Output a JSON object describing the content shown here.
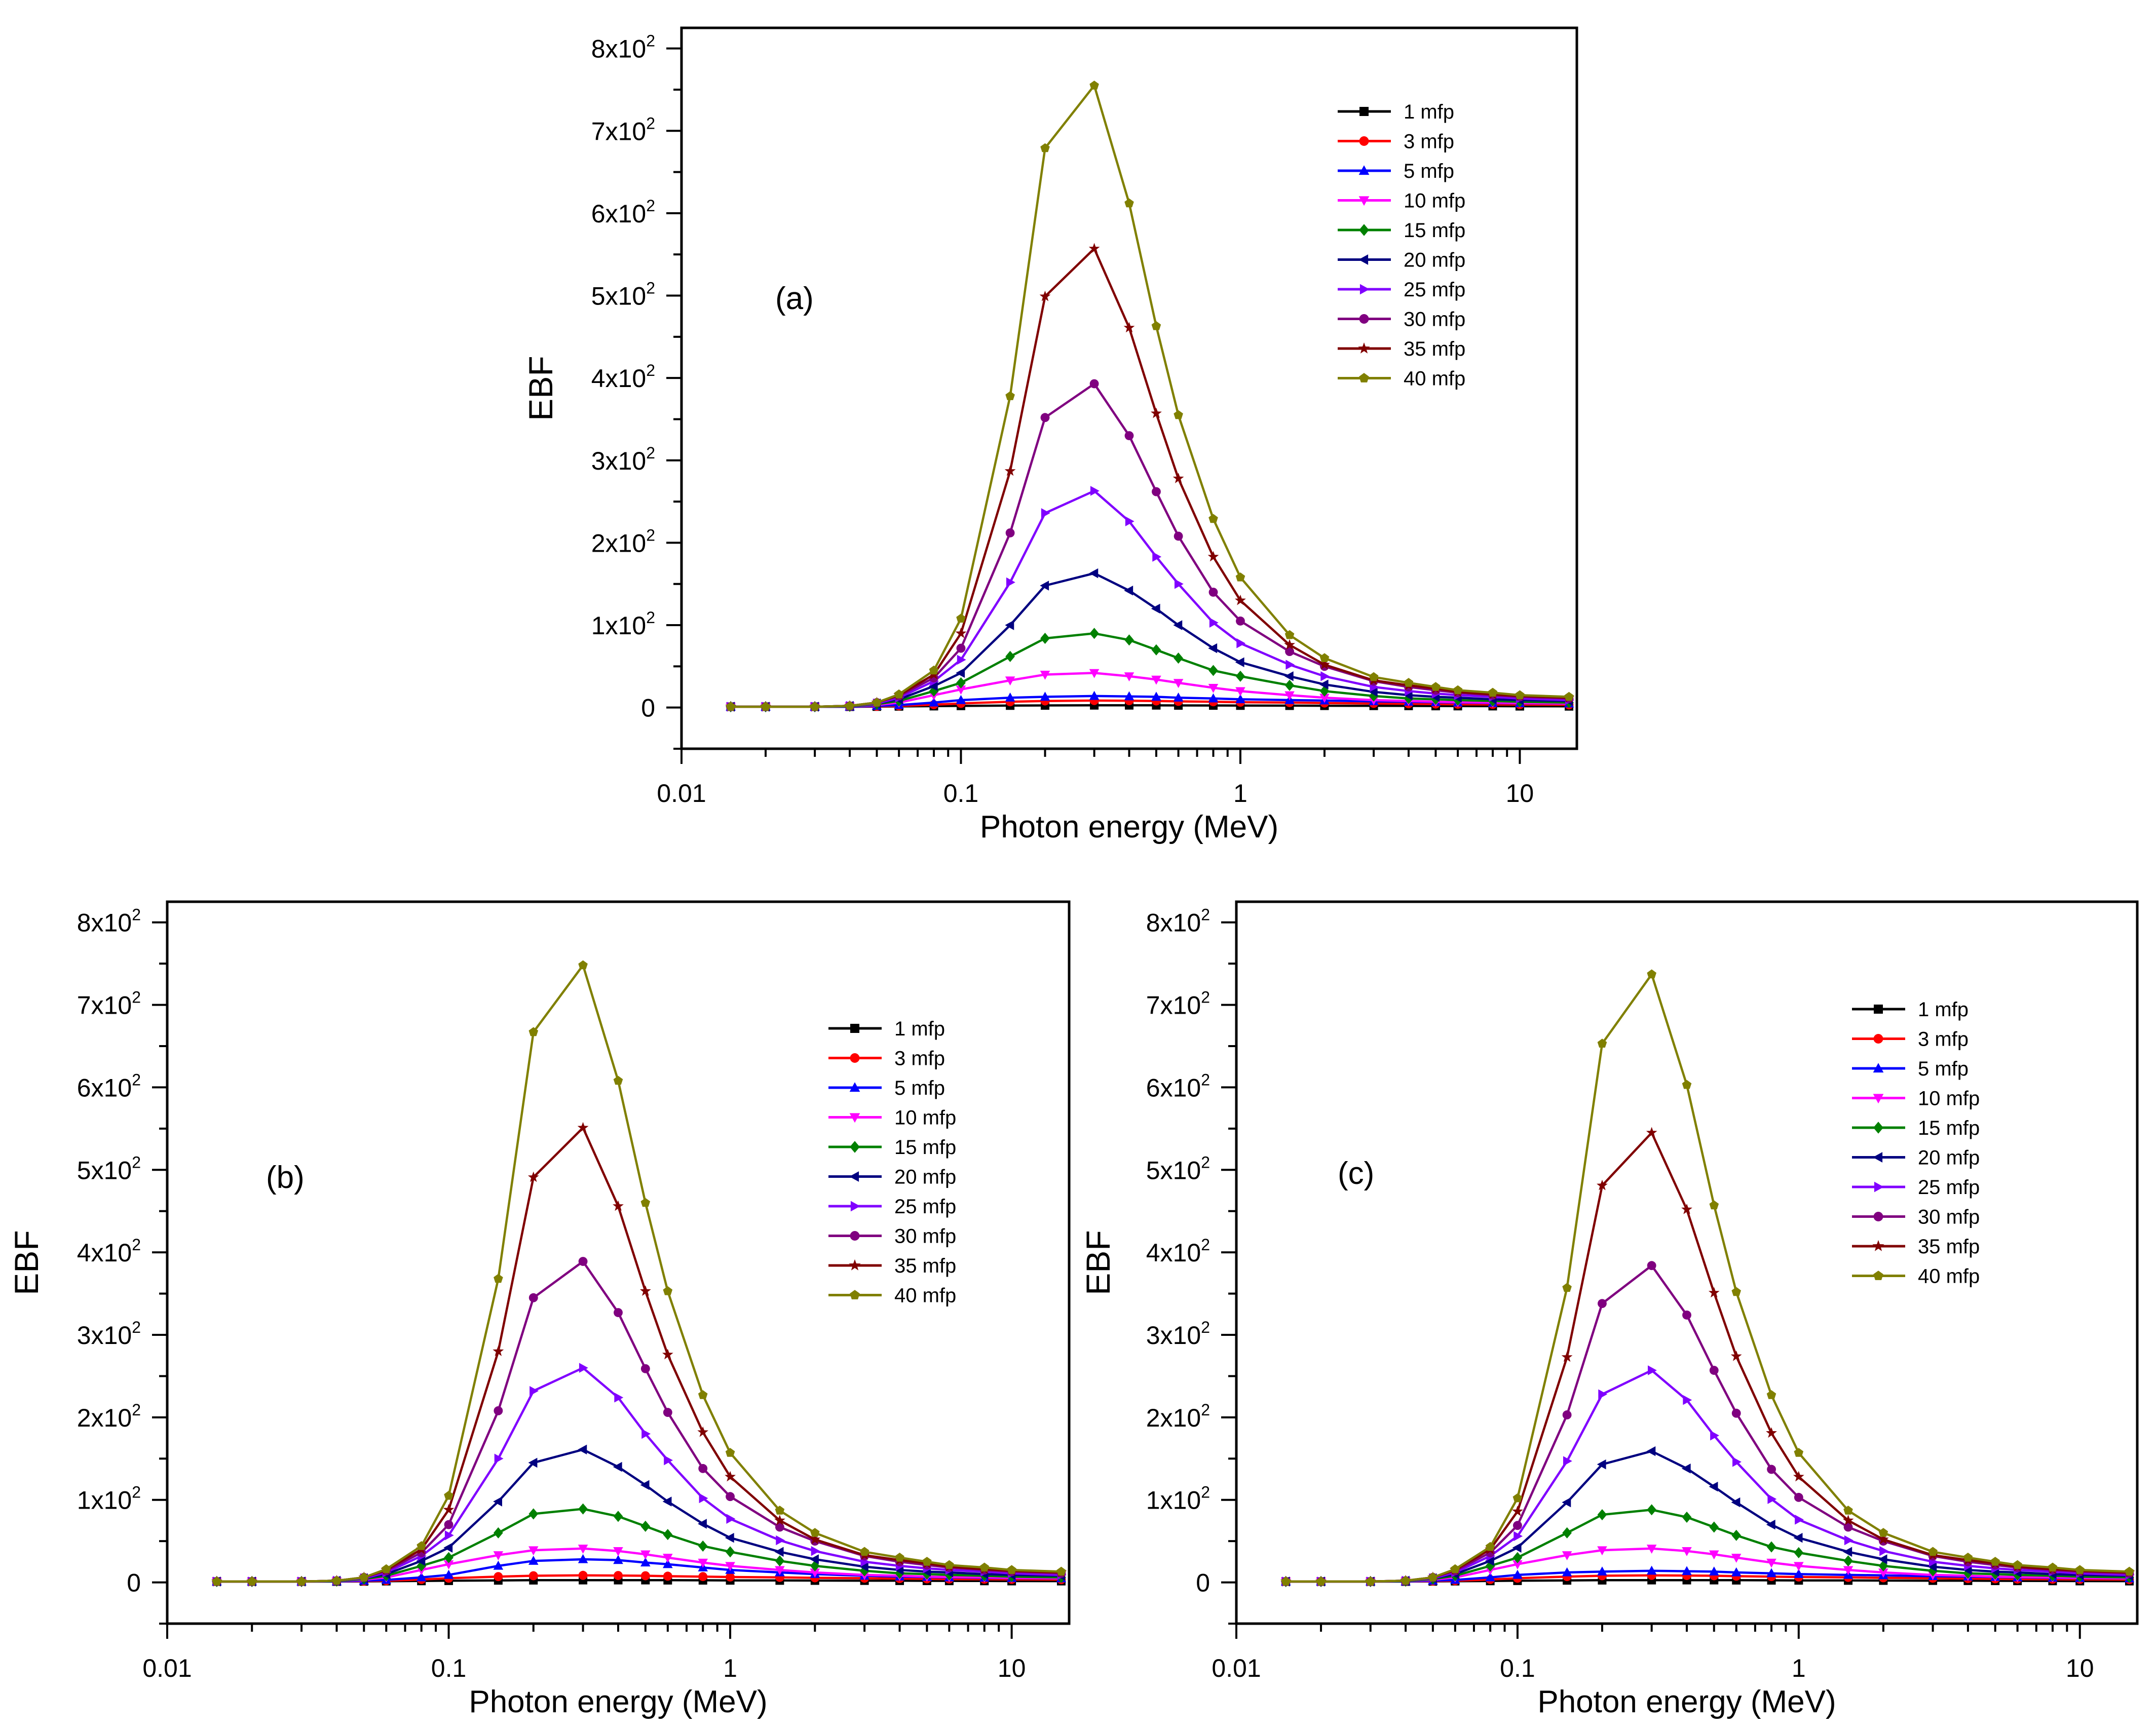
{
  "figure": {
    "axis_labels": {
      "x": "Photon energy (MeV)",
      "y": "EBF"
    },
    "x_ticks": [
      "0.01",
      "0.1",
      "1",
      "10"
    ],
    "y_ticks": [
      {
        "base": "0",
        "exp": ""
      },
      {
        "base": "1x10",
        "exp": "2"
      },
      {
        "base": "2x10",
        "exp": "2"
      },
      {
        "base": "3x10",
        "exp": "2"
      },
      {
        "base": "4x10",
        "exp": "2"
      },
      {
        "base": "5x10",
        "exp": "2"
      },
      {
        "base": "6x10",
        "exp": "2"
      },
      {
        "base": "7x10",
        "exp": "2"
      },
      {
        "base": "8x10",
        "exp": "2"
      }
    ]
  },
  "chart_data": [
    {
      "type": "line",
      "panel_label": "(a)",
      "xlabel": "Photon energy (MeV)",
      "ylabel": "EBF",
      "xscale": "log",
      "xlim": [
        0.01,
        16
      ],
      "ylim": [
        -50,
        825
      ],
      "legend_position": "top-right",
      "x": [
        0.015,
        0.02,
        0.03,
        0.04,
        0.05,
        0.06,
        0.08,
        0.1,
        0.15,
        0.2,
        0.3,
        0.4,
        0.5,
        0.6,
        0.8,
        1,
        1.5,
        2,
        3,
        4,
        5,
        6,
        8,
        10,
        15
      ],
      "series": [
        {
          "name": "1 mfp",
          "color": "#000000",
          "marker": "square",
          "values": [
            1,
            1,
            1,
            1,
            1.2,
            1.4,
            1.7,
            2,
            2.4,
            2.6,
            2.7,
            2.7,
            2.7,
            2.6,
            2.5,
            2.4,
            2.3,
            2.2,
            2.1,
            2,
            1.9,
            1.8,
            1.7,
            1.6,
            1.5
          ]
        },
        {
          "name": "3 mfp",
          "color": "#ff0000",
          "marker": "circle",
          "values": [
            1,
            1,
            1,
            1,
            1.5,
            2,
            3.5,
            5,
            7,
            8,
            8.5,
            8.3,
            8,
            7.5,
            7,
            6.5,
            6,
            5.5,
            5,
            4.6,
            4.3,
            4,
            3.8,
            3.6,
            3.3
          ]
        },
        {
          "name": "5 mfp",
          "color": "#0000ff",
          "marker": "triangle-up",
          "values": [
            1,
            1,
            1,
            1,
            2,
            3,
            6,
            9,
            12,
            13,
            14,
            13.5,
            13,
            12,
            11,
            10,
            9,
            8.5,
            7.5,
            7,
            6.5,
            6,
            5.5,
            5.2,
            4.8
          ]
        },
        {
          "name": "10 mfp",
          "color": "#ff00ff",
          "marker": "triangle-down",
          "values": [
            1,
            1,
            1,
            1.5,
            3,
            6,
            15,
            22,
            33,
            40,
            42,
            38,
            34,
            30,
            24,
            20,
            15,
            12,
            9,
            8,
            7,
            6.5,
            6,
            5.5,
            5
          ]
        },
        {
          "name": "15 mfp",
          "color": "#008000",
          "marker": "diamond",
          "values": [
            1,
            1,
            1,
            1.5,
            4,
            8,
            20,
            30,
            62,
            84,
            90,
            82,
            70,
            60,
            45,
            38,
            27,
            20,
            14,
            11,
            10,
            9,
            8,
            7,
            6
          ]
        },
        {
          "name": "20 mfp",
          "color": "#000080",
          "marker": "triangle-left",
          "values": [
            1,
            1,
            1,
            2,
            5,
            10,
            26,
            42,
            100,
            148,
            163,
            142,
            120,
            100,
            72,
            55,
            38,
            28,
            19,
            15,
            13,
            12,
            10,
            9,
            8
          ]
        },
        {
          "name": "25 mfp",
          "color": "#8000ff",
          "marker": "triangle-right",
          "values": [
            1,
            1,
            1,
            2,
            5,
            12,
            32,
            58,
            152,
            236,
            263,
            226,
            183,
            150,
            103,
            78,
            52,
            38,
            25,
            20,
            17,
            15,
            13,
            11,
            9
          ]
        },
        {
          "name": "30 mfp",
          "color": "#800080",
          "marker": "circle",
          "values": [
            1,
            1,
            1,
            2,
            6,
            14,
            36,
            72,
            212,
            352,
            393,
            330,
            262,
            208,
            140,
            105,
            68,
            50,
            32,
            25,
            21,
            18,
            15,
            13,
            11
          ]
        },
        {
          "name": "35 mfp",
          "color": "#800000",
          "marker": "star",
          "values": [
            1,
            1,
            1,
            2,
            6,
            15,
            40,
            90,
            287,
            499,
            557,
            461,
            357,
            278,
            183,
            130,
            76,
            52,
            33,
            27,
            23,
            19,
            16,
            14,
            12
          ]
        },
        {
          "name": "40 mfp",
          "color": "#808000",
          "marker": "pentagon",
          "values": [
            1,
            1,
            1,
            2,
            6,
            16,
            45,
            108,
            378,
            679,
            755,
            612,
            463,
            355,
            229,
            158,
            88,
            60,
            37,
            30,
            25,
            21,
            18,
            15,
            13
          ]
        }
      ]
    },
    {
      "type": "line",
      "panel_label": "(b)",
      "xlabel": "Photon energy (MeV)",
      "ylabel": "EBF",
      "xscale": "log",
      "xlim": [
        0.01,
        16
      ],
      "ylim": [
        -50,
        825
      ],
      "legend_position": "top-right",
      "x": [
        0.015,
        0.02,
        0.03,
        0.04,
        0.05,
        0.06,
        0.08,
        0.1,
        0.15,
        0.2,
        0.3,
        0.4,
        0.5,
        0.6,
        0.8,
        1,
        1.5,
        2,
        3,
        4,
        5,
        6,
        8,
        10,
        15
      ],
      "series": [
        {
          "name": "1 mfp",
          "color": "#000000",
          "marker": "square",
          "values": [
            1,
            1,
            1,
            1,
            1.2,
            1.4,
            1.7,
            2,
            2.4,
            2.6,
            2.7,
            2.7,
            2.7,
            2.6,
            2.5,
            2.4,
            2.3,
            2.2,
            2.1,
            2,
            1.9,
            1.8,
            1.7,
            1.6,
            1.5
          ]
        },
        {
          "name": "3 mfp",
          "color": "#ff0000",
          "marker": "circle",
          "values": [
            1,
            1,
            1,
            1,
            1.5,
            2,
            3.5,
            5,
            7,
            8,
            8.5,
            8.3,
            8,
            7.5,
            7,
            6.5,
            6,
            5.5,
            5,
            4.6,
            4.3,
            4,
            3.8,
            3.6,
            3.3
          ]
        },
        {
          "name": "5 mfp",
          "color": "#0000ff",
          "marker": "triangle-up",
          "values": [
            1,
            1,
            1,
            1,
            2,
            3,
            6,
            9,
            20,
            26,
            28,
            27,
            24,
            22,
            18,
            15,
            12,
            10,
            8,
            7,
            6.5,
            6,
            5.5,
            5.2,
            4.8
          ]
        },
        {
          "name": "10 mfp",
          "color": "#ff00ff",
          "marker": "triangle-down",
          "values": [
            1,
            1,
            1,
            1.5,
            3,
            6,
            15,
            22,
            33,
            39,
            41,
            38,
            34,
            30,
            24,
            20,
            15,
            12,
            9,
            8,
            7,
            6.5,
            6,
            5.5,
            5
          ]
        },
        {
          "name": "15 mfp",
          "color": "#008000",
          "marker": "diamond",
          "values": [
            1,
            1,
            1,
            1.5,
            4,
            8,
            20,
            30,
            60,
            83,
            89,
            80,
            68,
            58,
            44,
            37,
            26,
            20,
            14,
            11,
            10,
            9,
            8,
            7,
            6
          ]
        },
        {
          "name": "20 mfp",
          "color": "#000080",
          "marker": "triangle-left",
          "values": [
            1,
            1,
            1,
            2,
            5,
            10,
            26,
            42,
            98,
            145,
            161,
            140,
            118,
            98,
            71,
            54,
            37,
            28,
            19,
            15,
            13,
            12,
            10,
            9,
            8
          ]
        },
        {
          "name": "25 mfp",
          "color": "#8000ff",
          "marker": "triangle-right",
          "values": [
            1,
            1,
            1,
            2,
            5,
            12,
            32,
            57,
            150,
            232,
            260,
            224,
            180,
            148,
            102,
            77,
            51,
            38,
            25,
            20,
            17,
            15,
            13,
            11,
            9
          ]
        },
        {
          "name": "30 mfp",
          "color": "#800080",
          "marker": "circle",
          "values": [
            1,
            1,
            1,
            2,
            6,
            14,
            36,
            70,
            208,
            345,
            389,
            327,
            259,
            206,
            138,
            104,
            67,
            50,
            32,
            25,
            21,
            18,
            15,
            13,
            11
          ]
        },
        {
          "name": "35 mfp",
          "color": "#800000",
          "marker": "star",
          "values": [
            1,
            1,
            1,
            2,
            6,
            15,
            40,
            88,
            280,
            491,
            551,
            456,
            353,
            276,
            182,
            128,
            75,
            52,
            33,
            27,
            23,
            19,
            16,
            14,
            12
          ]
        },
        {
          "name": "40 mfp",
          "color": "#808000",
          "marker": "pentagon",
          "values": [
            1,
            1,
            1,
            2,
            6,
            16,
            44,
            105,
            368,
            667,
            748,
            608,
            460,
            353,
            227,
            157,
            87,
            60,
            37,
            30,
            25,
            21,
            18,
            15,
            13
          ]
        }
      ]
    },
    {
      "type": "line",
      "panel_label": "(c)",
      "xlabel": "Photon energy (MeV)",
      "ylabel": "EBF",
      "xscale": "log",
      "xlim": [
        0.01,
        16
      ],
      "ylim": [
        -50,
        825
      ],
      "legend_position": "top-right",
      "x": [
        0.015,
        0.02,
        0.03,
        0.04,
        0.05,
        0.06,
        0.08,
        0.1,
        0.15,
        0.2,
        0.3,
        0.4,
        0.5,
        0.6,
        0.8,
        1,
        1.5,
        2,
        3,
        4,
        5,
        6,
        8,
        10,
        15
      ],
      "series": [
        {
          "name": "1 mfp",
          "color": "#000000",
          "marker": "square",
          "values": [
            1,
            1,
            1,
            1,
            1.2,
            1.4,
            1.7,
            2,
            2.4,
            2.6,
            2.7,
            2.7,
            2.7,
            2.6,
            2.5,
            2.4,
            2.3,
            2.2,
            2.1,
            2,
            1.9,
            1.8,
            1.7,
            1.6,
            1.5
          ]
        },
        {
          "name": "3 mfp",
          "color": "#ff0000",
          "marker": "circle",
          "values": [
            1,
            1,
            1,
            1,
            1.5,
            2,
            3.5,
            5,
            7,
            8,
            8.5,
            8.3,
            8,
            7.5,
            7,
            6.5,
            6,
            5.5,
            5,
            4.6,
            4.3,
            4,
            3.8,
            3.6,
            3.3
          ]
        },
        {
          "name": "5 mfp",
          "color": "#0000ff",
          "marker": "triangle-up",
          "values": [
            1,
            1,
            1,
            1,
            2,
            3,
            6,
            9,
            12,
            13,
            14,
            13.5,
            13,
            12,
            11,
            10,
            9,
            8.5,
            7.5,
            7,
            6.5,
            6,
            5.5,
            5.2,
            4.8
          ]
        },
        {
          "name": "10 mfp",
          "color": "#ff00ff",
          "marker": "triangle-down",
          "values": [
            1,
            1,
            1,
            1.5,
            3,
            6,
            15,
            22,
            33,
            39,
            41,
            38,
            34,
            30,
            24,
            20,
            15,
            12,
            9,
            8,
            7,
            6.5,
            6,
            5.5,
            5
          ]
        },
        {
          "name": "15 mfp",
          "color": "#008000",
          "marker": "diamond",
          "values": [
            1,
            1,
            1,
            1.5,
            4,
            8,
            20,
            30,
            60,
            82,
            88,
            79,
            67,
            57,
            43,
            36,
            26,
            20,
            14,
            11,
            10,
            9,
            8,
            7,
            6
          ]
        },
        {
          "name": "20 mfp",
          "color": "#000080",
          "marker": "triangle-left",
          "values": [
            1,
            1,
            1,
            2,
            5,
            10,
            26,
            42,
            97,
            143,
            159,
            138,
            116,
            97,
            70,
            54,
            37,
            28,
            19,
            15,
            13,
            12,
            10,
            9,
            8
          ]
        },
        {
          "name": "25 mfp",
          "color": "#8000ff",
          "marker": "triangle-right",
          "values": [
            1,
            1,
            1,
            2,
            5,
            12,
            32,
            56,
            147,
            228,
            257,
            221,
            178,
            146,
            101,
            76,
            51,
            38,
            25,
            20,
            17,
            15,
            13,
            11,
            9
          ]
        },
        {
          "name": "30 mfp",
          "color": "#800080",
          "marker": "circle",
          "values": [
            1,
            1,
            1,
            2,
            6,
            14,
            36,
            69,
            203,
            338,
            384,
            324,
            257,
            205,
            137,
            103,
            67,
            50,
            32,
            25,
            21,
            18,
            15,
            13,
            11
          ]
        },
        {
          "name": "35 mfp",
          "color": "#800000",
          "marker": "star",
          "values": [
            1,
            1,
            1,
            2,
            6,
            15,
            40,
            86,
            273,
            481,
            545,
            452,
            351,
            274,
            181,
            128,
            75,
            52,
            33,
            27,
            23,
            19,
            16,
            14,
            12
          ]
        },
        {
          "name": "40 mfp",
          "color": "#808000",
          "marker": "pentagon",
          "values": [
            1,
            1,
            1,
            2,
            6,
            16,
            43,
            102,
            357,
            653,
            737,
            603,
            457,
            352,
            227,
            157,
            87,
            60,
            37,
            30,
            25,
            21,
            18,
            15,
            13
          ]
        }
      ]
    }
  ]
}
